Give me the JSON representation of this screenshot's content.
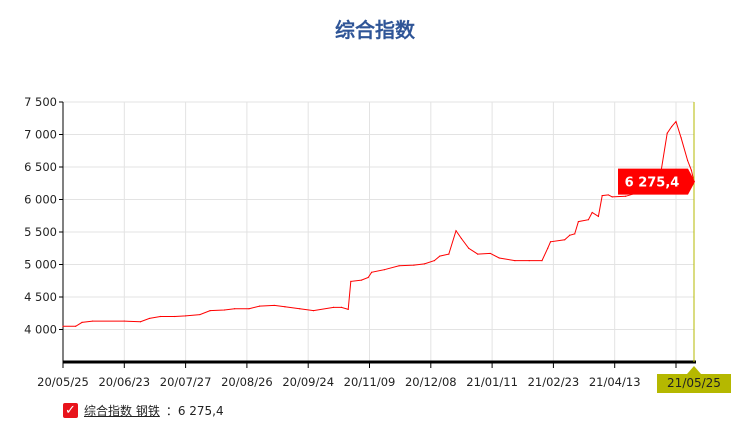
{
  "title": "综合指数",
  "chart_data": {
    "type": "line",
    "title": "综合指数",
    "xlabel": "",
    "ylabel": "",
    "ylim": [
      3500,
      7500
    ],
    "yticks": [
      4000,
      4500,
      5000,
      5500,
      6000,
      6500,
      7000,
      7500
    ],
    "ytick_labels": [
      "4 000",
      "4 500",
      "5 000",
      "5 500",
      "6 000",
      "6 500",
      "7 000",
      "7 500"
    ],
    "xtick_labels": [
      "20/05/25",
      "20/06/23",
      "20/07/27",
      "20/08/26",
      "20/09/24",
      "20/11/09",
      "20/12/08",
      "21/01/11",
      "21/02/23",
      "21/04/13"
    ],
    "grid": true,
    "line_color": "#ff0000",
    "crosshair_color": "#b5b800",
    "series": [
      {
        "name": "综合指数 钢铁",
        "points": [
          [
            "20/05/25",
            4050
          ],
          [
            "20/05/31",
            4050
          ],
          [
            "20/06/03",
            4110
          ],
          [
            "20/06/08",
            4130
          ],
          [
            "20/06/23",
            4130
          ],
          [
            "20/07/02",
            4120
          ],
          [
            "20/07/07",
            4170
          ],
          [
            "20/07/13",
            4200
          ],
          [
            "20/07/21",
            4200
          ],
          [
            "20/07/27",
            4210
          ],
          [
            "20/08/03",
            4230
          ],
          [
            "20/08/08",
            4290
          ],
          [
            "20/08/15",
            4300
          ],
          [
            "20/08/20",
            4320
          ],
          [
            "20/08/27",
            4320
          ],
          [
            "20/09/01",
            4360
          ],
          [
            "20/09/08",
            4370
          ],
          [
            "20/09/13",
            4350
          ],
          [
            "20/09/20",
            4320
          ],
          [
            "20/09/28",
            4290
          ],
          [
            "20/10/13",
            4340
          ],
          [
            "20/10/19",
            4340
          ],
          [
            "20/10/24",
            4310
          ],
          [
            "20/10/26",
            4740
          ],
          [
            "20/11/03",
            4760
          ],
          [
            "20/11/08",
            4800
          ],
          [
            "20/11/10",
            4880
          ],
          [
            "20/11/16",
            4920
          ],
          [
            "20/11/23",
            4980
          ],
          [
            "20/11/30",
            4990
          ],
          [
            "20/12/05",
            5010
          ],
          [
            "20/12/10",
            5060
          ],
          [
            "20/12/13",
            5130
          ],
          [
            "20/12/18",
            5160
          ],
          [
            "20/12/22",
            5520
          ],
          [
            "20/12/25",
            5400
          ],
          [
            "20/12/29",
            5250
          ],
          [
            "21/01/03",
            5160
          ],
          [
            "21/01/10",
            5170
          ],
          [
            "21/01/16",
            5100
          ],
          [
            "21/01/27",
            5060
          ],
          [
            "21/02/06",
            5060
          ],
          [
            "21/02/15",
            5060
          ],
          [
            "21/02/19",
            5250
          ],
          [
            "21/02/21",
            5350
          ],
          [
            "21/03/04",
            5380
          ],
          [
            "21/03/08",
            5450
          ],
          [
            "21/03/12",
            5470
          ],
          [
            "21/03/15",
            5660
          ],
          [
            "21/03/23",
            5690
          ],
          [
            "21/03/26",
            5800
          ],
          [
            "21/03/31",
            5740
          ],
          [
            "21/04/03",
            6060
          ],
          [
            "21/04/08",
            6070
          ],
          [
            "21/04/11",
            6040
          ],
          [
            "21/04/18",
            6050
          ],
          [
            "21/04/22",
            6090
          ],
          [
            "21/04/29",
            6110
          ],
          [
            "21/05/04",
            6400
          ],
          [
            "21/05/07",
            7020
          ],
          [
            "21/05/09",
            7120
          ],
          [
            "21/05/11",
            7200
          ],
          [
            "21/05/15",
            6950
          ],
          [
            "21/05/20",
            6600
          ],
          [
            "21/05/23",
            6450
          ],
          [
            "21/05/25",
            6275.4
          ]
        ]
      }
    ],
    "tooltip": {
      "date": "21/05/25",
      "value_label": "6 275,4"
    }
  },
  "legend": {
    "name": "综合指数 钢铁",
    "value": "：6 275,4"
  }
}
